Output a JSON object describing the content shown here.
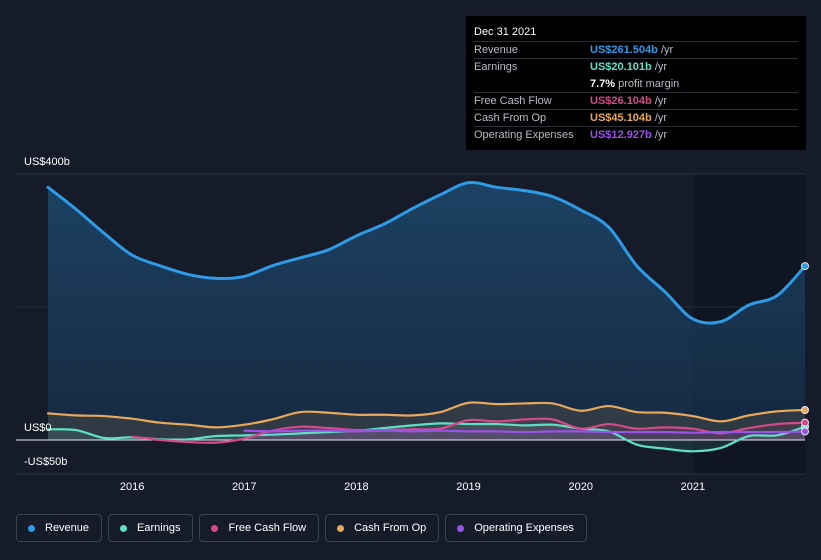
{
  "tooltip": {
    "date": "Dec 31 2021",
    "rows": [
      {
        "label": "Revenue",
        "value": "US$261.504b",
        "unit": " /yr",
        "color": "#2f9be6"
      },
      {
        "label": "Earnings",
        "value": "US$20.101b",
        "unit": " /yr",
        "color": "#5fe0c6"
      },
      {
        "label": "",
        "value": "7.7%",
        "unit": " profit margin",
        "color": "#ffffff"
      },
      {
        "label": "Free Cash Flow",
        "value": "US$26.104b",
        "unit": " /yr",
        "color": "#d44a8b"
      },
      {
        "label": "Cash From Op",
        "value": "US$45.104b",
        "unit": " /yr",
        "color": "#e8a95a"
      },
      {
        "label": "Operating Expenses",
        "value": "US$12.927b",
        "unit": " /yr",
        "color": "#9b52e8"
      }
    ]
  },
  "chart_data": {
    "type": "line",
    "title": "",
    "xlabel": "",
    "ylabel": "",
    "ylim": [
      -50,
      400
    ],
    "y_tick_labels": [
      "US$400b",
      "US$0",
      "-US$50b"
    ],
    "x_tick_labels": [
      "2016",
      "2017",
      "2018",
      "2019",
      "2020",
      "2021"
    ],
    "x_ticks": [
      2016,
      2017,
      2018,
      2019,
      2020,
      2021
    ],
    "xlim": [
      2015.25,
      2022.0
    ],
    "highlight_from": 2021.0,
    "series": [
      {
        "name": "Revenue",
        "color": "#2f9be6",
        "fill": true,
        "points": [
          [
            2015.25,
            380
          ],
          [
            2015.5,
            347
          ],
          [
            2015.75,
            311
          ],
          [
            2016.0,
            278
          ],
          [
            2016.25,
            262
          ],
          [
            2016.5,
            249
          ],
          [
            2016.75,
            243
          ],
          [
            2017.0,
            246
          ],
          [
            2017.25,
            262
          ],
          [
            2017.5,
            274
          ],
          [
            2017.75,
            286
          ],
          [
            2018.0,
            307
          ],
          [
            2018.25,
            325
          ],
          [
            2018.5,
            348
          ],
          [
            2018.75,
            369
          ],
          [
            2019.0,
            387
          ],
          [
            2019.25,
            380
          ],
          [
            2019.5,
            375
          ],
          [
            2019.75,
            366
          ],
          [
            2020.0,
            346
          ],
          [
            2020.25,
            320
          ],
          [
            2020.5,
            262
          ],
          [
            2020.75,
            223
          ],
          [
            2021.0,
            182
          ],
          [
            2021.25,
            178
          ],
          [
            2021.5,
            203
          ],
          [
            2021.75,
            217
          ],
          [
            2022.0,
            261.504
          ]
        ]
      },
      {
        "name": "Earnings",
        "color": "#5fe0c6",
        "fill": false,
        "points": [
          [
            2015.25,
            16
          ],
          [
            2015.5,
            15
          ],
          [
            2015.75,
            3
          ],
          [
            2016.0,
            4
          ],
          [
            2016.25,
            1
          ],
          [
            2016.5,
            1
          ],
          [
            2016.75,
            6
          ],
          [
            2017.0,
            7
          ],
          [
            2017.25,
            8
          ],
          [
            2017.5,
            10
          ],
          [
            2017.75,
            12
          ],
          [
            2018.0,
            14
          ],
          [
            2018.25,
            18
          ],
          [
            2018.5,
            22
          ],
          [
            2018.75,
            25
          ],
          [
            2019.0,
            24
          ],
          [
            2019.25,
            24
          ],
          [
            2019.5,
            22
          ],
          [
            2019.75,
            23
          ],
          [
            2020.0,
            17
          ],
          [
            2020.25,
            13
          ],
          [
            2020.5,
            -7
          ],
          [
            2020.75,
            -13
          ],
          [
            2021.0,
            -17
          ],
          [
            2021.25,
            -12
          ],
          [
            2021.5,
            6
          ],
          [
            2021.75,
            7
          ],
          [
            2022.0,
            20.101
          ]
        ]
      },
      {
        "name": "Free Cash Flow",
        "color": "#d44a8b",
        "fill": false,
        "points": [
          [
            2016.0,
            5
          ],
          [
            2016.25,
            0
          ],
          [
            2016.5,
            -3
          ],
          [
            2016.75,
            -4
          ],
          [
            2017.0,
            2
          ],
          [
            2017.25,
            14
          ],
          [
            2017.5,
            20
          ],
          [
            2017.75,
            18
          ],
          [
            2018.0,
            15
          ],
          [
            2018.25,
            15
          ],
          [
            2018.5,
            16
          ],
          [
            2018.75,
            17
          ],
          [
            2019.0,
            30
          ],
          [
            2019.25,
            28
          ],
          [
            2019.5,
            31
          ],
          [
            2019.75,
            31
          ],
          [
            2020.0,
            17
          ],
          [
            2020.25,
            24
          ],
          [
            2020.5,
            17
          ],
          [
            2020.75,
            19
          ],
          [
            2021.0,
            17
          ],
          [
            2021.25,
            10
          ],
          [
            2021.5,
            18
          ],
          [
            2021.75,
            24
          ],
          [
            2022.0,
            26.104
          ]
        ]
      },
      {
        "name": "Cash From Op",
        "color": "#e8a95a",
        "fill": false,
        "points": [
          [
            2015.25,
            40
          ],
          [
            2015.5,
            37
          ],
          [
            2015.75,
            36
          ],
          [
            2016.0,
            32
          ],
          [
            2016.25,
            26
          ],
          [
            2016.5,
            23
          ],
          [
            2016.75,
            19
          ],
          [
            2017.0,
            23
          ],
          [
            2017.25,
            31
          ],
          [
            2017.5,
            42
          ],
          [
            2017.75,
            41
          ],
          [
            2018.0,
            38
          ],
          [
            2018.25,
            38
          ],
          [
            2018.5,
            37
          ],
          [
            2018.75,
            42
          ],
          [
            2019.0,
            56
          ],
          [
            2019.25,
            54
          ],
          [
            2019.5,
            55
          ],
          [
            2019.75,
            55
          ],
          [
            2020.0,
            44
          ],
          [
            2020.25,
            51
          ],
          [
            2020.5,
            42
          ],
          [
            2020.75,
            41
          ],
          [
            2021.0,
            36
          ],
          [
            2021.25,
            28
          ],
          [
            2021.5,
            37
          ],
          [
            2021.75,
            43
          ],
          [
            2022.0,
            45.104
          ]
        ]
      },
      {
        "name": "Operating Expenses",
        "color": "#9b52e8",
        "fill": false,
        "points": [
          [
            2017.0,
            14
          ],
          [
            2017.25,
            13
          ],
          [
            2017.5,
            14
          ],
          [
            2017.75,
            14
          ],
          [
            2018.0,
            13
          ],
          [
            2018.25,
            14
          ],
          [
            2018.5,
            13
          ],
          [
            2018.75,
            14
          ],
          [
            2019.0,
            13
          ],
          [
            2019.25,
            13
          ],
          [
            2019.5,
            12
          ],
          [
            2019.75,
            13
          ],
          [
            2020.0,
            13
          ],
          [
            2020.25,
            12
          ],
          [
            2020.5,
            12
          ],
          [
            2020.75,
            12
          ],
          [
            2021.0,
            11
          ],
          [
            2021.25,
            12
          ],
          [
            2021.5,
            12
          ],
          [
            2021.75,
            12
          ],
          [
            2022.0,
            12.927
          ]
        ]
      }
    ]
  },
  "legend": [
    {
      "label": "Revenue",
      "color": "#2f9be6"
    },
    {
      "label": "Earnings",
      "color": "#5fe0c6"
    },
    {
      "label": "Free Cash Flow",
      "color": "#d44a8b"
    },
    {
      "label": "Cash From Op",
      "color": "#e8a95a"
    },
    {
      "label": "Operating Expenses",
      "color": "#9b52e8"
    }
  ]
}
